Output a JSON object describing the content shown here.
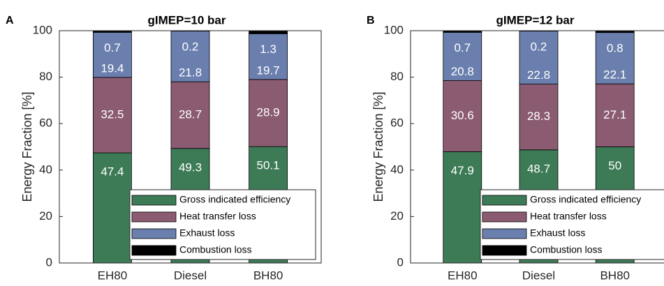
{
  "chart_data": [
    {
      "type": "stacked_bar",
      "panel": "A",
      "title": "gIMEP=10 bar",
      "ylabel": "Energy Fraction [%]",
      "categories": [
        "EH80",
        "Diesel",
        "BH80"
      ],
      "series": [
        {
          "name": "Gross indicated efficiency",
          "color": "#3d7b57",
          "values": [
            47.4,
            49.3,
            50.1
          ]
        },
        {
          "name": "Heat transfer loss",
          "color": "#8b5b72",
          "values": [
            32.5,
            28.7,
            28.9
          ]
        },
        {
          "name": "Exhaust loss",
          "color": "#6a7fae",
          "values": [
            19.4,
            21.8,
            19.7
          ]
        },
        {
          "name": "Combustion loss",
          "color": "#000000",
          "values": [
            0.7,
            0.2,
            1.3
          ]
        }
      ],
      "ylim": [
        0,
        100
      ],
      "yticks": [
        0,
        20,
        40,
        60,
        80,
        100
      ]
    },
    {
      "type": "stacked_bar",
      "panel": "B",
      "title": "gIMEP=12 bar",
      "ylabel": "Energy Fraction [%]",
      "categories": [
        "EH80",
        "Diesel",
        "BH80"
      ],
      "series": [
        {
          "name": "Gross indicated efficiency",
          "color": "#3d7b57",
          "values": [
            47.9,
            48.7,
            50
          ]
        },
        {
          "name": "Heat transfer loss",
          "color": "#8b5b72",
          "values": [
            30.6,
            28.3,
            27.1
          ]
        },
        {
          "name": "Exhaust loss",
          "color": "#6a7fae",
          "values": [
            20.8,
            22.8,
            22.1
          ]
        },
        {
          "name": "Combustion loss",
          "color": "#000000",
          "values": [
            0.7,
            0.2,
            0.8
          ]
        }
      ],
      "ylim": [
        0,
        100
      ],
      "yticks": [
        0,
        20,
        40,
        60,
        80,
        100
      ]
    }
  ]
}
